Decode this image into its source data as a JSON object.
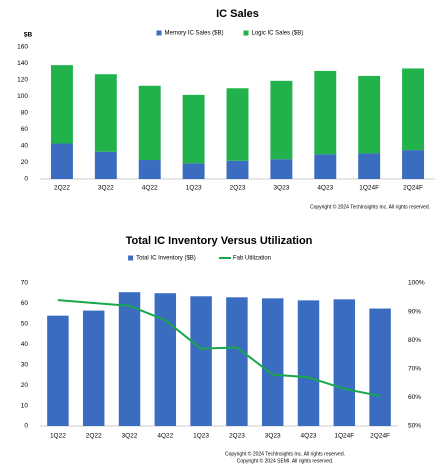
{
  "chart_data": [
    {
      "type": "bar",
      "stacked": true,
      "title": "IC Sales",
      "ylabel": "$B",
      "legend": "top",
      "categories": [
        "2Q22",
        "3Q22",
        "4Q22",
        "1Q23",
        "2Q23",
        "3Q23",
        "4Q23",
        "1Q24F",
        "2Q24F"
      ],
      "series": [
        {
          "name": "Memory IC Sales ($B)",
          "color": "#3a6cc0",
          "values": [
            43,
            33,
            23,
            19,
            22,
            24,
            30,
            31,
            35
          ]
        },
        {
          "name": "Logic IC Sales ($B)",
          "color": "#21b24b",
          "values": [
            95,
            94,
            90,
            83,
            88,
            95,
            101,
            94,
            99
          ]
        }
      ],
      "ylim": [
        0,
        160
      ],
      "yticks": [
        0,
        20,
        40,
        60,
        80,
        100,
        120,
        140,
        160
      ],
      "grid": false,
      "copyright": [
        "Copyright © 2024 TechInsights Inc.  All rights reserved."
      ]
    },
    {
      "type": "combo",
      "title": "Total IC Inventory Versus Utilization",
      "legend": "top",
      "categories": [
        "1Q22",
        "2Q22",
        "3Q22",
        "4Q22",
        "1Q23",
        "2Q23",
        "3Q23",
        "4Q23",
        "1Q24F",
        "2Q24F"
      ],
      "series": [
        {
          "name": "Total IC Inventory ($B)",
          "type": "bar",
          "color": "#3a6cc0",
          "values": [
            54,
            56.5,
            65.5,
            65,
            63.5,
            63,
            62.5,
            61.5,
            62,
            57.5
          ]
        },
        {
          "name": "Fab Utilization",
          "type": "line",
          "axis": "y2",
          "color": "#1aa64a",
          "values": [
            94,
            93,
            92,
            87,
            77,
            77.5,
            68,
            67,
            63,
            60.5
          ]
        }
      ],
      "ylim": [
        0,
        70
      ],
      "yticks": [
        0,
        10,
        20,
        30,
        40,
        50,
        60,
        70
      ],
      "y2lim": [
        50,
        100
      ],
      "y2ticks": [
        {
          "value": 50,
          "label": "50%"
        },
        {
          "value": 60,
          "label": "60%"
        },
        {
          "value": 70,
          "label": "70%"
        },
        {
          "value": 80,
          "label": "80%"
        },
        {
          "value": 90,
          "label": "90%"
        },
        {
          "value": 100,
          "label": "100%"
        }
      ],
      "grid": false,
      "copyright": [
        "Copyright © 2024 TechInsights Inc.  All rights reserved.",
        "Copyright © 2024 SEMI.  All rights reserved."
      ]
    }
  ]
}
